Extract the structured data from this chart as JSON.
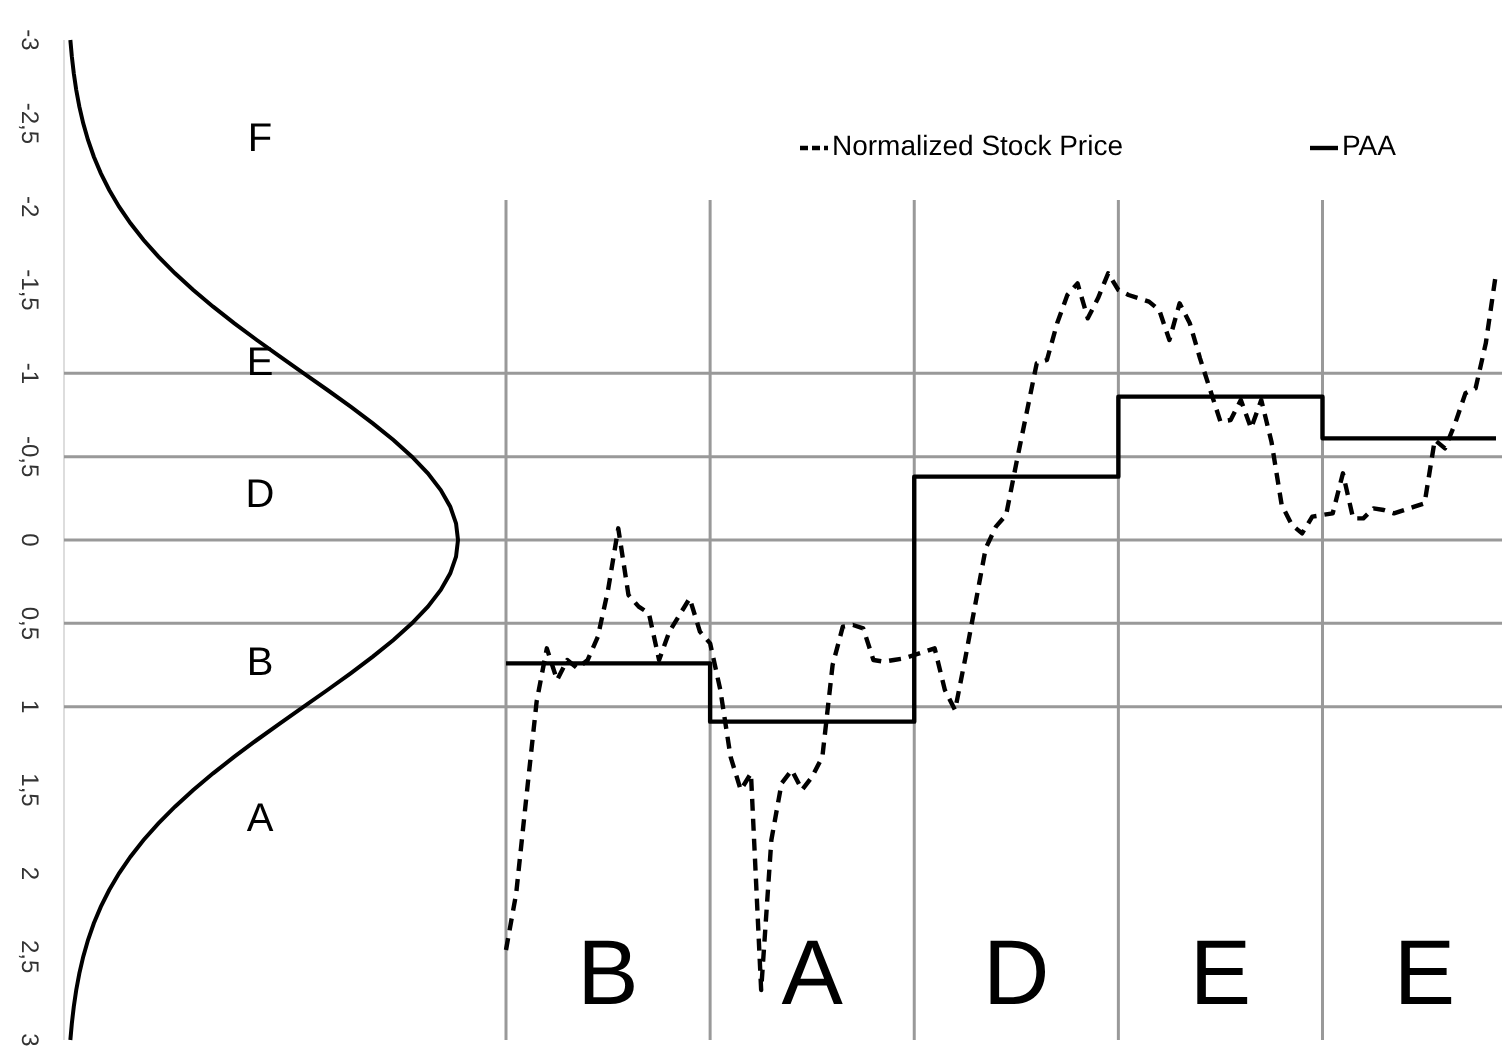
{
  "chart_data": {
    "type": "line",
    "categories": [
      null,
      null,
      null,
      null,
      null,
      null,
      null,
      null,
      null,
      null,
      "B",
      null,
      null,
      null,
      null,
      null,
      null,
      null,
      null,
      null,
      null,
      null,
      null,
      null,
      null,
      null,
      null,
      null,
      null,
      null,
      "A",
      null,
      null,
      null,
      null,
      null,
      null,
      null,
      null,
      null,
      null,
      null,
      null,
      null,
      null,
      null,
      null,
      null,
      null,
      null,
      "D",
      null,
      null,
      null,
      null,
      null,
      null,
      null,
      null,
      null,
      null,
      null,
      null,
      null,
      null,
      null,
      null,
      null,
      null,
      null,
      "E",
      null,
      null,
      null,
      null,
      null,
      null,
      null,
      null,
      null,
      null,
      null,
      null,
      null,
      null,
      null,
      null,
      null,
      null,
      null,
      "E",
      null,
      null,
      null,
      null,
      null,
      null,
      null
    ],
    "ylim": [
      3,
      -3
    ],
    "yticks": [
      -3,
      {
        "value": -2.5,
        "label": "-2,5"
      },
      -2,
      {
        "value": -1.5,
        "label": "-1,5"
      },
      -1,
      {
        "value": -0.5,
        "label": "-0,5"
      },
      0,
      {
        "value": 0.5,
        "label": "0,5"
      },
      1,
      {
        "value": 1.5,
        "label": "1,5"
      },
      2,
      {
        "value": 2.5,
        "label": "2,5"
      },
      3
    ],
    "legend": "top right",
    "grid": "x",
    "series": [
      {
        "name": "Normalized Stock Price",
        "color": "#000000",
        "line_style": "dashed",
        "values": [
          2.46,
          2.12,
          1.54,
          0.97,
          0.65,
          0.84,
          0.72,
          0.77,
          0.72,
          0.58,
          0.3,
          -0.07,
          0.33,
          0.4,
          0.44,
          0.72,
          0.55,
          0.45,
          0.35,
          0.55,
          0.62,
          0.9,
          1.3,
          1.5,
          1.4,
          2.7,
          1.8,
          1.46,
          1.38,
          1.5,
          1.42,
          1.3,
          0.75,
          0.52,
          0.51,
          0.53,
          0.72,
          0.73,
          0.72,
          0.71,
          0.69,
          0.67,
          0.65,
          0.9,
          1.02,
          0.71,
          0.38,
          0.05,
          -0.08,
          -0.15,
          -0.46,
          -0.76,
          -1.06,
          -1.08,
          -1.3,
          -1.47,
          -1.54,
          -1.33,
          -1.45,
          -1.6,
          -1.5,
          -1.47,
          -1.45,
          -1.43,
          -1.38,
          -1.2,
          -1.42,
          -1.3,
          -1.09,
          -0.9,
          -0.71,
          -0.72,
          -0.84,
          -0.67,
          -0.84,
          -0.59,
          -0.21,
          -0.09,
          -0.04,
          -0.14,
          -0.15,
          -0.16,
          -0.4,
          -0.13,
          -0.13,
          -0.19,
          -0.18,
          -0.16,
          -0.18,
          -0.2,
          -0.22,
          -0.6,
          -0.55,
          -0.7,
          -0.88,
          -0.91,
          -1.18,
          -1.6
        ]
      },
      {
        "name": "PAA",
        "color": "#000000",
        "type": "step",
        "line_style": "solid",
        "values": [
          0.74,
          0.74,
          0.74,
          0.74,
          0.74,
          0.74,
          0.74,
          0.74,
          0.74,
          0.74,
          0.74,
          0.74,
          0.74,
          0.74,
          0.74,
          0.74,
          0.74,
          0.74,
          0.74,
          0.74,
          1.09,
          1.09,
          1.09,
          1.09,
          1.09,
          1.09,
          1.09,
          1.09,
          1.09,
          1.09,
          1.09,
          1.09,
          1.09,
          1.09,
          1.09,
          1.09,
          1.09,
          1.09,
          1.09,
          1.09,
          -0.38,
          -0.38,
          -0.38,
          -0.38,
          -0.38,
          -0.38,
          -0.38,
          -0.38,
          -0.38,
          -0.38,
          -0.38,
          -0.38,
          -0.38,
          -0.38,
          -0.38,
          -0.38,
          -0.38,
          -0.38,
          -0.38,
          -0.38,
          -0.86,
          -0.86,
          -0.86,
          -0.86,
          -0.86,
          -0.86,
          -0.86,
          -0.86,
          -0.86,
          -0.86,
          -0.86,
          -0.86,
          -0.86,
          -0.86,
          -0.86,
          -0.86,
          -0.86,
          -0.86,
          -0.86,
          -0.86,
          -0.61,
          -0.61,
          -0.61,
          -0.61,
          -0.61,
          -0.61,
          -0.61,
          -0.61,
          -0.61,
          -0.61,
          -0.61,
          -0.61,
          -0.61,
          -0.61,
          -0.61,
          -0.61,
          -0.61,
          -0.61
        ]
      }
    ],
    "ref_lines": [
      {
        "axis": "y",
        "value": -1,
        "color": "#999999"
      },
      {
        "axis": "y",
        "value": -0.5,
        "color": "#999999"
      },
      {
        "axis": "y",
        "value": 0,
        "color": "#999999"
      },
      {
        "axis": "y",
        "value": 0.5,
        "color": "#999999"
      },
      {
        "axis": "y",
        "value": 1,
        "color": "#999999"
      }
    ],
    "annotations": [
      "F",
      "E",
      "D",
      "B",
      "A"
    ]
  }
}
